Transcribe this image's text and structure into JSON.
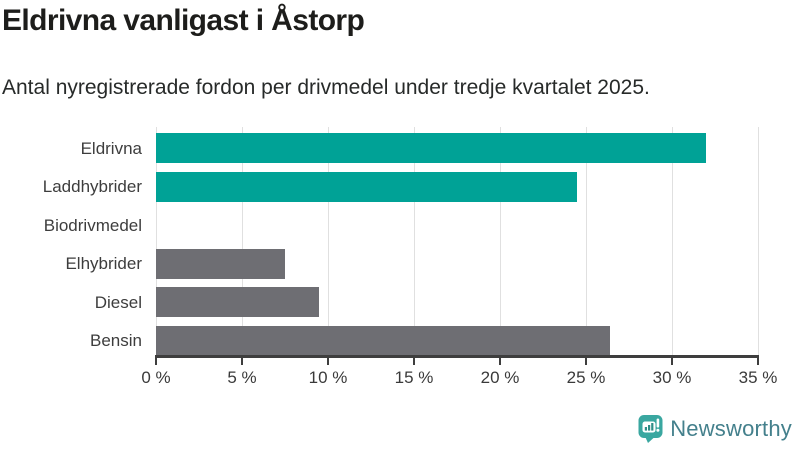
{
  "chart_data": {
    "type": "bar",
    "orientation": "horizontal",
    "title": "Eldrivna vanligast i Åstorp",
    "subtitle": "Antal nyregistrerade fordon per drivmedel under tredje kvartalet 2025.",
    "categories": [
      "Eldrivna",
      "Laddhybrider",
      "Biodrivmedel",
      "Elhybrider",
      "Diesel",
      "Bensin"
    ],
    "values": [
      32,
      24.5,
      0,
      7.5,
      9.5,
      26.4
    ],
    "unit": "%",
    "xlabel": "",
    "ylabel": "",
    "xlim": [
      0,
      35
    ],
    "x_tick_values": [
      0,
      5,
      10,
      15,
      20,
      25,
      30,
      35
    ],
    "x_ticks": [
      "0 %",
      "5 %",
      "10 %",
      "15 %",
      "20 %",
      "25 %",
      "30 %",
      "35 %"
    ],
    "grid": true,
    "legend": "none",
    "bar_colors": [
      "#00A296",
      "#00A296",
      "#6E6E73",
      "#6E6E73",
      "#6E6E73",
      "#6E6E73"
    ],
    "colors": {
      "highlight": "#00A296",
      "default": "#6E6E73",
      "gridline": "#E0E0E0",
      "axis": "#3E3E3E",
      "label": "#3D3D3D",
      "title": "#1D1D1B"
    }
  },
  "branding": {
    "logo_text": "Newsworthy",
    "logo_icon": "newsworthy-speech-bubble-bar-chart-icon",
    "logo_icon_color": "#3AA7A0",
    "logo_text_color": "#44808C"
  }
}
